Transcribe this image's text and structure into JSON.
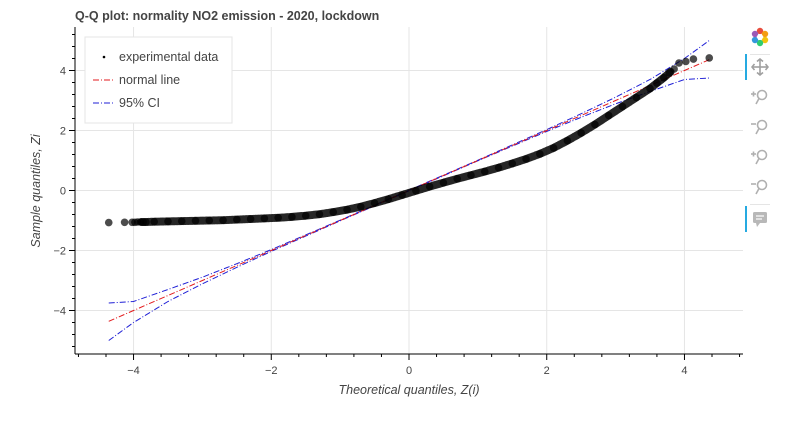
{
  "chart_data": {
    "type": "scatter",
    "title": "Q-Q plot: normality NO2 emission - 2020, lockdown",
    "xlabel": "Theoretical quantiles, Z(i)",
    "ylabel": "Sample quantiles, Zi",
    "xlim": [
      -4.85,
      4.85
    ],
    "ylim": [
      -5.45,
      5.45
    ],
    "xticks": [
      -4,
      -2,
      0,
      2,
      4
    ],
    "yticks": [
      -4,
      -2,
      0,
      2,
      4
    ],
    "grid": true,
    "legend_position": "top-left",
    "series": [
      {
        "name": "experimental data",
        "kind": "scatter",
        "color": "#000000",
        "points": [
          [
            -4.36,
            -1.07
          ],
          [
            -4.13,
            -1.06
          ],
          [
            -4.02,
            -1.06
          ],
          [
            -3.98,
            -1.06
          ],
          [
            -3.94,
            -1.05
          ],
          [
            -3.9,
            -1.05
          ],
          [
            -3.86,
            -1.05
          ],
          [
            -3.82,
            -1.05
          ],
          [
            -3.7,
            -1.04
          ],
          [
            -3.5,
            -1.03
          ],
          [
            -3.3,
            -1.02
          ],
          [
            -3.1,
            -1.01
          ],
          [
            -2.9,
            -1.0
          ],
          [
            -2.7,
            -0.99
          ],
          [
            -2.5,
            -0.97
          ],
          [
            -2.3,
            -0.95
          ],
          [
            -2.1,
            -0.93
          ],
          [
            -1.9,
            -0.91
          ],
          [
            -1.7,
            -0.88
          ],
          [
            -1.5,
            -0.84
          ],
          [
            -1.3,
            -0.79
          ],
          [
            -1.1,
            -0.72
          ],
          [
            -0.9,
            -0.64
          ],
          [
            -0.7,
            -0.54
          ],
          [
            -0.5,
            -0.42
          ],
          [
            -0.3,
            -0.29
          ],
          [
            -0.1,
            -0.15
          ],
          [
            0.1,
            -0.01
          ],
          [
            0.3,
            0.13
          ],
          [
            0.5,
            0.26
          ],
          [
            0.7,
            0.39
          ],
          [
            0.9,
            0.51
          ],
          [
            1.1,
            0.63
          ],
          [
            1.3,
            0.76
          ],
          [
            1.5,
            0.9
          ],
          [
            1.7,
            1.05
          ],
          [
            1.9,
            1.22
          ],
          [
            2.1,
            1.42
          ],
          [
            2.3,
            1.66
          ],
          [
            2.5,
            1.92
          ],
          [
            2.7,
            2.2
          ],
          [
            2.9,
            2.5
          ],
          [
            3.1,
            2.8
          ],
          [
            3.3,
            3.1
          ],
          [
            3.5,
            3.4
          ],
          [
            3.6,
            3.58
          ],
          [
            3.7,
            3.76
          ],
          [
            3.78,
            3.92
          ],
          [
            3.85,
            4.05
          ],
          [
            3.92,
            4.25
          ],
          [
            4.02,
            4.3
          ],
          [
            4.13,
            4.38
          ],
          [
            4.36,
            4.42
          ]
        ]
      },
      {
        "name": "normal line",
        "kind": "line",
        "color": "#e31a1c",
        "x": [
          -4.36,
          4.36
        ],
        "y": [
          -4.36,
          4.36
        ]
      },
      {
        "name": "95% CI",
        "kind": "line",
        "color": "#1f1fd6",
        "upper": {
          "x": [
            -4.36,
            -4.0,
            -3.5,
            -3.0,
            -2.5,
            -2.0,
            -1.5,
            -1.0,
            -0.5,
            0,
            0.5,
            1.0,
            1.5,
            2.0,
            2.5,
            3.0,
            3.5,
            4.0,
            4.36
          ],
          "y": [
            -3.75,
            -3.7,
            -3.3,
            -2.89,
            -2.44,
            -1.97,
            -1.48,
            -0.99,
            -0.49,
            0.01,
            0.51,
            1.01,
            1.52,
            2.03,
            2.56,
            3.11,
            3.7,
            4.4,
            5.0
          ]
        },
        "lower": {
          "x": [
            -4.36,
            -4.0,
            -3.5,
            -3.0,
            -2.5,
            -2.0,
            -1.5,
            -1.0,
            -0.5,
            0,
            0.5,
            1.0,
            1.5,
            2.0,
            2.5,
            3.0,
            3.5,
            4.0,
            4.36
          ],
          "y": [
            -5.0,
            -4.4,
            -3.7,
            -3.11,
            -2.56,
            -2.03,
            -1.52,
            -1.01,
            -0.51,
            -0.01,
            0.49,
            0.99,
            1.48,
            1.97,
            2.44,
            2.89,
            3.3,
            3.7,
            3.75
          ]
        }
      }
    ]
  },
  "toolbar": {
    "tools": [
      {
        "name": "bokeh-logo-icon",
        "icon": "logo",
        "active": false
      },
      {
        "name": "pan-tool-icon",
        "icon": "pan",
        "active": true
      },
      {
        "name": "zoom-in-x-icon",
        "icon": "zoom-in",
        "active": false
      },
      {
        "name": "zoom-out-x-icon",
        "icon": "zoom-out",
        "active": false
      },
      {
        "name": "zoom-in-y-icon",
        "icon": "zoom-in",
        "active": false
      },
      {
        "name": "zoom-out-y-icon",
        "icon": "zoom-out",
        "active": false
      },
      {
        "name": "hover-tool-icon",
        "icon": "hover",
        "active": true
      }
    ]
  }
}
